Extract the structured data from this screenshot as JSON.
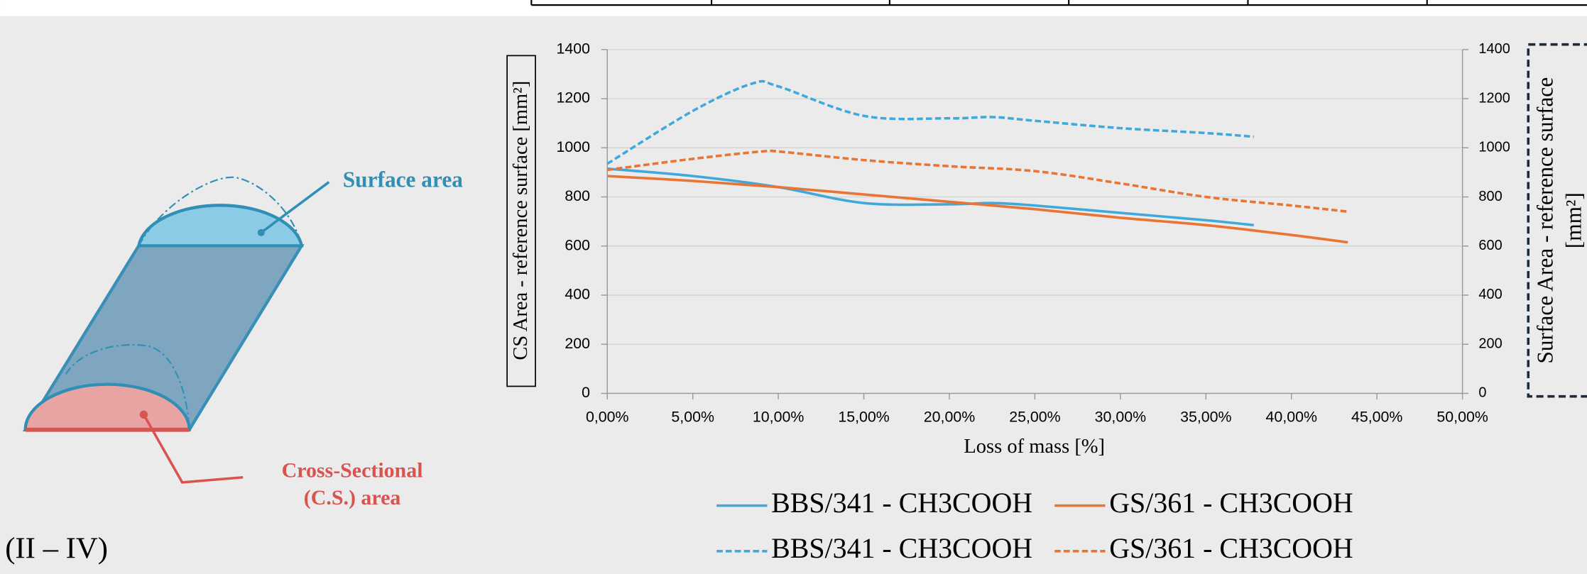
{
  "diagram": {
    "surface_label": "Surface area",
    "cs_label": [
      "Cross-Sectional",
      "(C.S.) area"
    ],
    "panel_label": "(II – IV)"
  },
  "chart_data": {
    "type": "line",
    "x_label": "Loss of mass [%]",
    "y_label": "CS Area - reference surface  [mm²]",
    "y2_label": [
      "Surface Area - reference surface",
      "[mm²]"
    ],
    "xlim": [
      0,
      50
    ],
    "xticks": [
      {
        "value": 0,
        "label": "0,00%"
      },
      {
        "value": 5,
        "label": "5,00%"
      },
      {
        "value": 10,
        "label": "10,00%"
      },
      {
        "value": 15,
        "label": "15,00%"
      },
      {
        "value": 20,
        "label": "20,00%"
      },
      {
        "value": 25,
        "label": "25,00%"
      },
      {
        "value": 30,
        "label": "30,00%"
      },
      {
        "value": 35,
        "label": "35,00%"
      },
      {
        "value": 40,
        "label": "40,00%"
      },
      {
        "value": 45,
        "label": "45,00%"
      },
      {
        "value": 50,
        "label": "50,00%"
      }
    ],
    "ylim": [
      0,
      1400
    ],
    "yticks": [
      0,
      200,
      400,
      600,
      800,
      1000,
      1200,
      1400
    ],
    "y2lim": [
      0,
      1400
    ],
    "y2ticks": [
      0,
      200,
      400,
      600,
      800,
      1000,
      1200,
      1400
    ],
    "grid": true,
    "series": [
      {
        "name": "BBS/341 - CH3COOH",
        "color": "#3fa9dc",
        "line_style": "solid",
        "x": [
          0,
          5,
          10,
          15,
          20,
          22.5,
          25,
          30,
          35,
          37.8
        ],
        "values": [
          915,
          885,
          840,
          775,
          770,
          775,
          765,
          735,
          705,
          685
        ]
      },
      {
        "name": "GS/361 - CH3COOH",
        "color": "#ea7434",
        "line_style": "solid",
        "x": [
          0,
          5,
          10,
          15,
          20,
          25,
          30,
          35,
          40,
          43.3
        ],
        "values": [
          885,
          865,
          840,
          810,
          780,
          750,
          715,
          685,
          645,
          615
        ]
      },
      {
        "name": "BBS/341 - CH3COOH",
        "color": "#3fa9dc",
        "line_style": "dashed",
        "axis": "y2",
        "x": [
          0,
          5,
          8.5,
          10,
          15,
          20,
          22.5,
          25,
          30,
          35,
          37.8
        ],
        "values": [
          935,
          1150,
          1262,
          1250,
          1130,
          1120,
          1125,
          1110,
          1080,
          1060,
          1045
        ]
      },
      {
        "name": "GS/361 - CH3COOH",
        "color": "#ea7434",
        "line_style": "dashed",
        "axis": "y2",
        "x": [
          0,
          5,
          9,
          10,
          15,
          20,
          25,
          30,
          35,
          40,
          43.3
        ],
        "values": [
          910,
          955,
          985,
          985,
          950,
          925,
          905,
          855,
          800,
          765,
          740
        ]
      }
    ]
  }
}
